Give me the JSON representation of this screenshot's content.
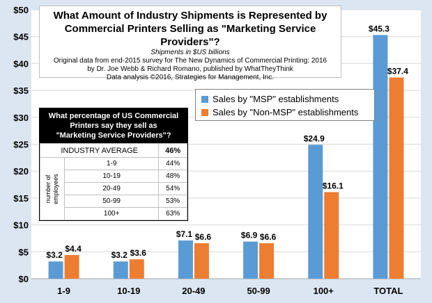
{
  "chart_data": {
    "type": "bar",
    "title": "What Amount of Industry Shipments is Represented by Commercial Printers Selling as \"Marketing Service Providers\"?",
    "subtitle_lines": [
      "Shipments in $US billions",
      "Original data from end-2015 survey for The New Dynamics of Commercial Printing: 2016",
      "by Dr. Joe Webb & Richard Romano, published by WhatTheyThink",
      "Data analysis ©2016, Strategies for Management, Inc."
    ],
    "categories": [
      "1-9",
      "10-19",
      "20-49",
      "50-99",
      "100+",
      "TOTAL"
    ],
    "series": [
      {
        "name": "Sales by \"MSP\" establishments",
        "color": "#5b9bd5",
        "values": [
          3.2,
          3.2,
          7.1,
          6.9,
          24.9,
          45.3
        ],
        "labels": [
          "$3.2",
          "$3.2",
          "$7.1",
          "$6.9",
          "$24.9",
          "$45.3"
        ]
      },
      {
        "name": "Sales by \"Non-MSP\" establishments",
        "color": "#ed7d31",
        "values": [
          4.4,
          3.6,
          6.6,
          6.6,
          16.1,
          37.4
        ],
        "labels": [
          "$4.4",
          "$3.6",
          "$6.6",
          "$6.6",
          "$16.1",
          "$37.4"
        ]
      }
    ],
    "ylim": [
      0,
      50
    ],
    "yticks": [
      0,
      5,
      10,
      15,
      20,
      25,
      30,
      35,
      40,
      45,
      50
    ],
    "ytick_labels": [
      "$0",
      "$5",
      "$10",
      "$15",
      "$20",
      "$25",
      "$30",
      "$35",
      "$40",
      "$45",
      "$50"
    ],
    "grid": true,
    "legend": "upper-right"
  },
  "inset_table": {
    "header_lines": [
      "What percentage of US Commercial",
      "Printers say they sell as",
      "\"Marketing Service Providers\"?"
    ],
    "average_label": "INDUSTRY AVERAGE",
    "average_value": "46%",
    "group_label_lines": [
      "number of",
      "employees"
    ],
    "rows": [
      {
        "size": "1-9",
        "pct": "44%"
      },
      {
        "size": "10-19",
        "pct": "48%"
      },
      {
        "size": "20-49",
        "pct": "54%"
      },
      {
        "size": "50-99",
        "pct": "53%"
      },
      {
        "size": "100+",
        "pct": "63%"
      }
    ]
  }
}
